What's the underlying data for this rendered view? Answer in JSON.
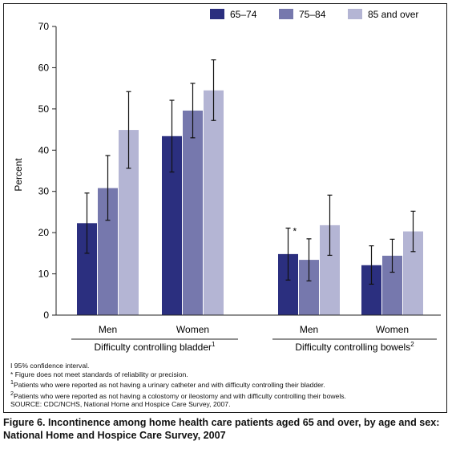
{
  "chart_data": {
    "type": "bar",
    "title": "",
    "ylabel": "Percent",
    "ylim": [
      0,
      70
    ],
    "yticks": [
      0,
      10,
      20,
      30,
      40,
      50,
      60,
      70
    ],
    "grid": false,
    "legend_position": "top-right",
    "categories": [
      "Men",
      "Women",
      "Men",
      "Women"
    ],
    "category_groups": [
      {
        "label": "Difficulty controlling bladder",
        "marker": "1",
        "categories": [
          "Men",
          "Women"
        ]
      },
      {
        "label": "Difficulty controlling bowels",
        "marker": "2",
        "categories": [
          "Men",
          "Women"
        ]
      }
    ],
    "series": [
      {
        "name": "65–74",
        "color": "#2b2f7f",
        "values": [
          22.3,
          43.4,
          14.8,
          12.1
        ],
        "ci_low": [
          15.0,
          34.7,
          8.5,
          7.5
        ],
        "ci_high": [
          29.6,
          52.1,
          21.1,
          16.8
        ],
        "flags": [
          "",
          "",
          "*",
          ""
        ]
      },
      {
        "name": "75–84",
        "color": "#7678ad",
        "values": [
          30.8,
          49.6,
          13.4,
          14.4
        ],
        "ci_low": [
          23.0,
          43.0,
          8.3,
          10.4
        ],
        "ci_high": [
          38.7,
          56.2,
          18.5,
          18.4
        ],
        "flags": [
          "",
          "",
          "",
          ""
        ]
      },
      {
        "name": "85 and over",
        "color": "#b4b5d4",
        "values": [
          44.9,
          54.5,
          21.8,
          20.3
        ],
        "ci_low": [
          35.6,
          47.2,
          14.5,
          15.4
        ],
        "ci_high": [
          54.2,
          61.9,
          29.1,
          25.2
        ],
        "flags": [
          "",
          "",
          "",
          ""
        ]
      }
    ]
  },
  "notes": {
    "ci_symbol": "I",
    "ci": " 95% confidence interval.",
    "asterisk": "* Figure does not meet standards of reliability or precision.",
    "fn1_marker": "1",
    "fn1": "Patients who were reported as not having a urinary catheter and with difficulty controlling their bladder.",
    "fn2_marker": "2",
    "fn2": "Patients who were reported as not having a colostomy or ileostomy and with difficulty controlling their bowels.",
    "source": "SOURCE: CDC/NCHS, National Home and Hospice Care Survey, 2007."
  },
  "caption": {
    "line1": "Figure 6. Incontinence among home health care patients aged 65 and over, by age and sex:",
    "line2": "National Home and Hospice Care Survey, 2007"
  }
}
